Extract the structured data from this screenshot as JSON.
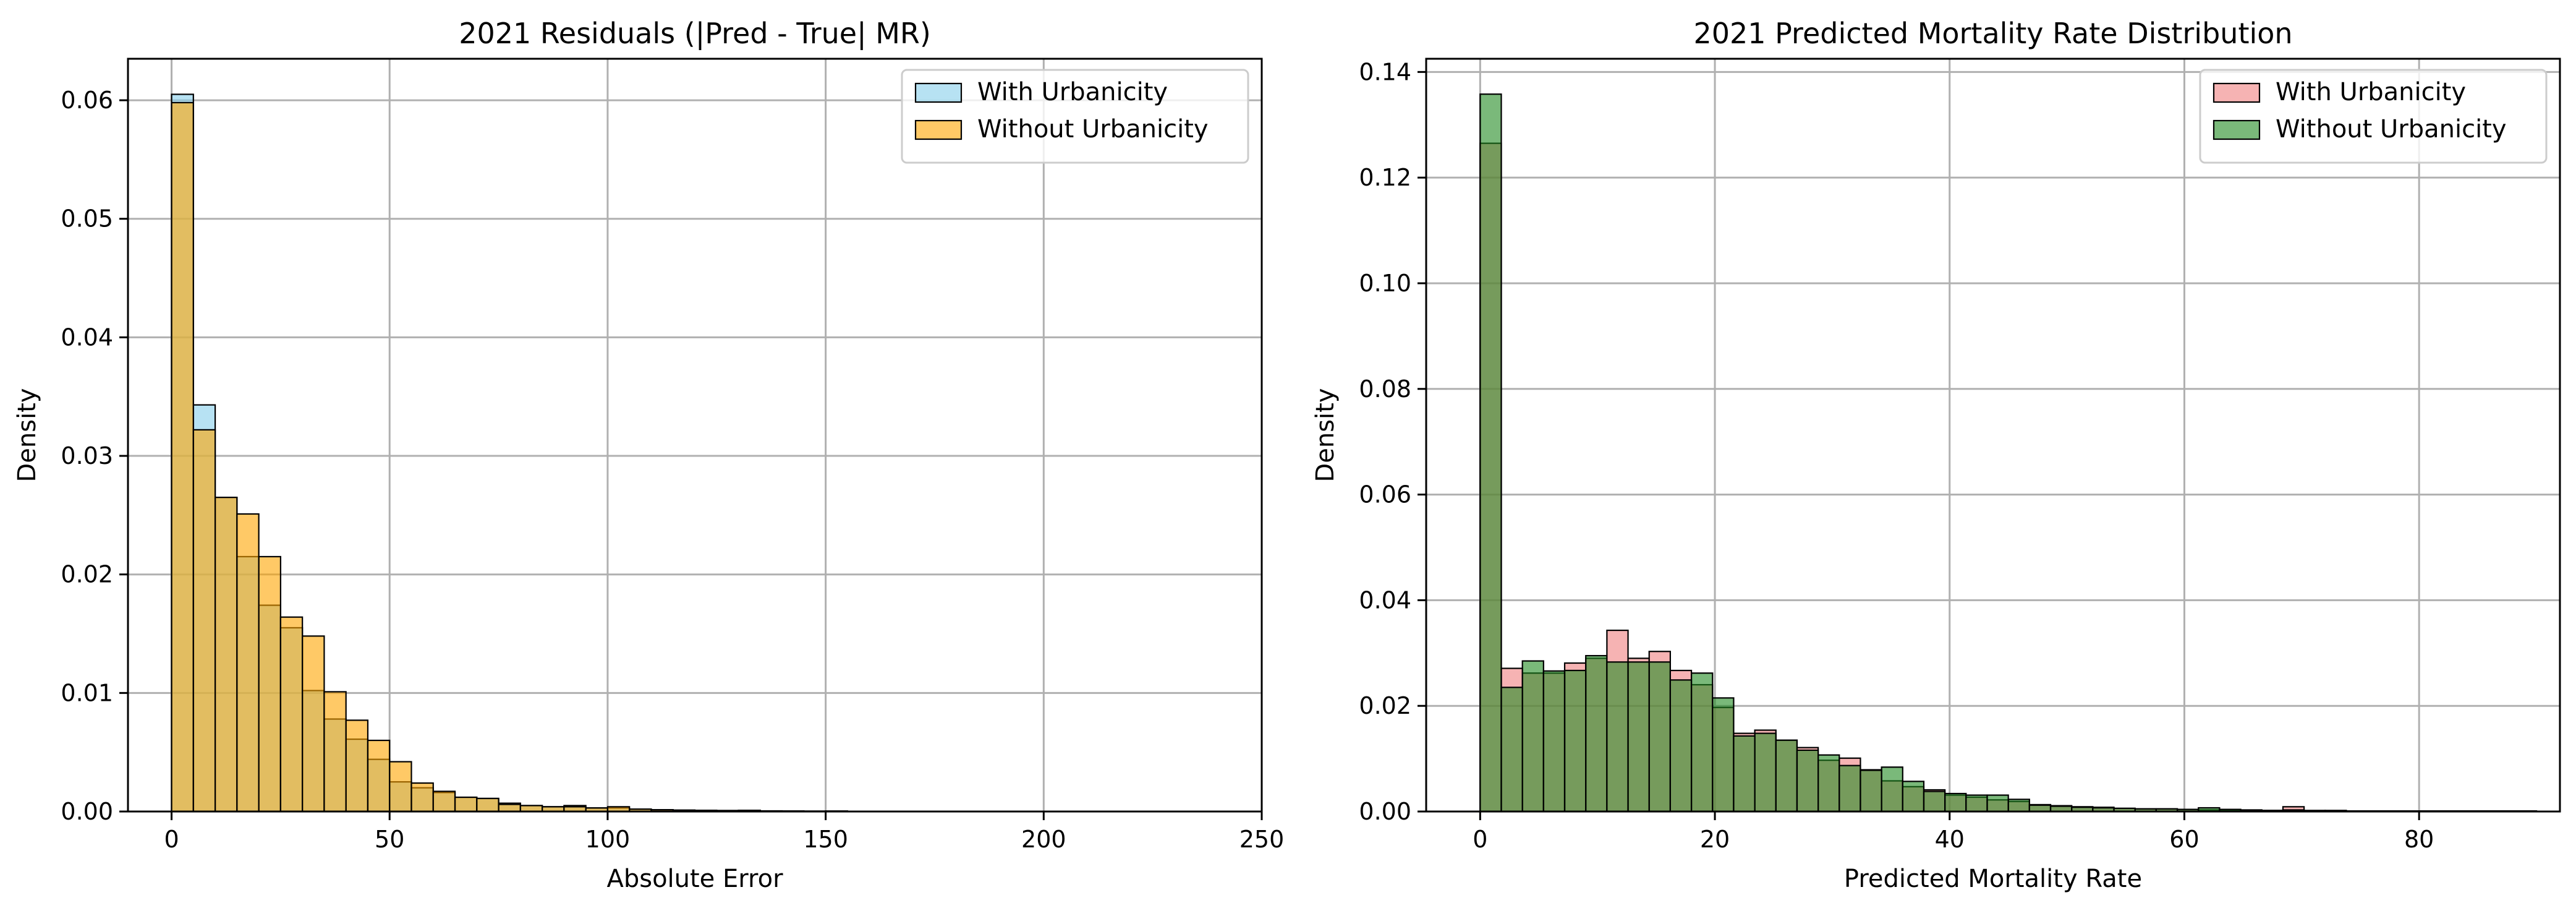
{
  "chart_data": [
    {
      "type": "histogram",
      "title": "2021 Residuals (|Pred - True| MR)",
      "xlabel": "Absolute Error",
      "ylabel": "Density",
      "xlim": [
        -10,
        250
      ],
      "ylim": [
        0,
        0.0635
      ],
      "xticks": [
        0,
        50,
        100,
        150,
        200,
        250
      ],
      "yticks": [
        0.0,
        0.01,
        0.02,
        0.03,
        0.04,
        0.05,
        0.06
      ],
      "ytick_labels": [
        "0.00",
        "0.01",
        "0.02",
        "0.03",
        "0.04",
        "0.05",
        "0.06"
      ],
      "grid": true,
      "legend_position": "upper right",
      "bin_start": 0,
      "bin_width": 5,
      "series": [
        {
          "name": "With Urbanicity",
          "color": "#87CEEB",
          "values": [
            0.0605,
            0.0343,
            0.0265,
            0.0215,
            0.0174,
            0.0155,
            0.0102,
            0.0078,
            0.0061,
            0.0044,
            0.0025,
            0.002,
            0.0016,
            0.0012,
            0.0011,
            0.0007,
            0.0005,
            0.0004,
            0.0005,
            0.0003,
            0.0003,
            0.0002,
            0.00015,
            0.00012,
            0.0001,
            8e-05,
            0.0001,
            5e-05,
            4e-05,
            3e-05,
            4e-05,
            2e-05,
            2e-05,
            2e-05,
            1e-05,
            1e-05,
            1e-05,
            1e-05,
            1e-05,
            1e-05,
            1e-05,
            1e-05,
            1e-05,
            1e-05,
            1e-05,
            2e-05,
            1e-05
          ]
        },
        {
          "name": "Without Urbanicity",
          "color": "#FFA500",
          "values": [
            0.0598,
            0.0322,
            0.0265,
            0.0251,
            0.0215,
            0.0164,
            0.0148,
            0.0101,
            0.0077,
            0.006,
            0.0042,
            0.0024,
            0.0017,
            0.0012,
            0.0011,
            0.0006,
            0.0005,
            0.0004,
            0.0004,
            0.0003,
            0.0004,
            0.0002,
            0.00015,
            0.0001,
            0.0001,
            8e-05,
            6e-05,
            5e-05,
            4e-05,
            3e-05,
            3e-05,
            2e-05,
            2e-05,
            1e-05,
            1e-05,
            1e-05,
            1e-05,
            1e-05,
            1e-05,
            1e-05,
            1e-05,
            1e-05,
            1e-05,
            1e-05,
            1e-05,
            1e-05,
            1e-05
          ]
        }
      ]
    },
    {
      "type": "histogram",
      "title": "2021 Predicted Mortality Rate Distribution",
      "xlabel": "Predicted Mortality Rate",
      "ylabel": "Density",
      "xlim": [
        -4.6,
        92
      ],
      "ylim": [
        0,
        0.1425
      ],
      "xticks": [
        0,
        20,
        40,
        60,
        80
      ],
      "yticks": [
        0.0,
        0.02,
        0.04,
        0.06,
        0.08,
        0.1,
        0.12,
        0.14
      ],
      "ytick_labels": [
        "0.00",
        "0.02",
        "0.04",
        "0.06",
        "0.08",
        "0.10",
        "0.12",
        "0.14"
      ],
      "grid": true,
      "legend_position": "upper right",
      "bin_start": 0,
      "bin_width": 1.8,
      "series": [
        {
          "name": "With Urbanicity",
          "color": "#F08080",
          "values": [
            0.1265,
            0.0271,
            0.0262,
            0.0262,
            0.0281,
            0.029,
            0.0343,
            0.029,
            0.0303,
            0.0267,
            0.024,
            0.0197,
            0.0148,
            0.0154,
            0.0135,
            0.0121,
            0.0097,
            0.0101,
            0.0079,
            0.0058,
            0.0047,
            0.0041,
            0.0031,
            0.0027,
            0.0022,
            0.0019,
            0.0013,
            0.0011,
            0.0009,
            0.0008,
            0.0006,
            0.0005,
            0.0005,
            0.0004,
            0.0003,
            0.0003,
            0.0002,
            0.0002,
            0.0009,
            0.0001,
            0.0001,
            0.0001,
            0.0001,
            0.0001,
            0.0001,
            0.0001,
            0.0001,
            0.0001,
            0.0001,
            0.0001
          ]
        },
        {
          "name": "Without Urbanicity",
          "color": "#228B22",
          "values": [
            0.1358,
            0.0235,
            0.0285,
            0.0266,
            0.0267,
            0.0295,
            0.0283,
            0.0283,
            0.0283,
            0.0249,
            0.0262,
            0.0215,
            0.0143,
            0.0148,
            0.0135,
            0.0116,
            0.0107,
            0.0087,
            0.0078,
            0.0084,
            0.0057,
            0.0038,
            0.0034,
            0.0031,
            0.0031,
            0.0023,
            0.0012,
            0.001,
            0.0008,
            0.0007,
            0.0006,
            0.0005,
            0.0005,
            0.0004,
            0.0007,
            0.0004,
            0.0003,
            0.0002,
            0.0003,
            0.0002,
            0.0002,
            0.0001,
            0.0001,
            0.0001,
            0.0001,
            0.0001,
            0.0001,
            0.0001,
            0.0001,
            0.0001
          ]
        }
      ]
    }
  ]
}
